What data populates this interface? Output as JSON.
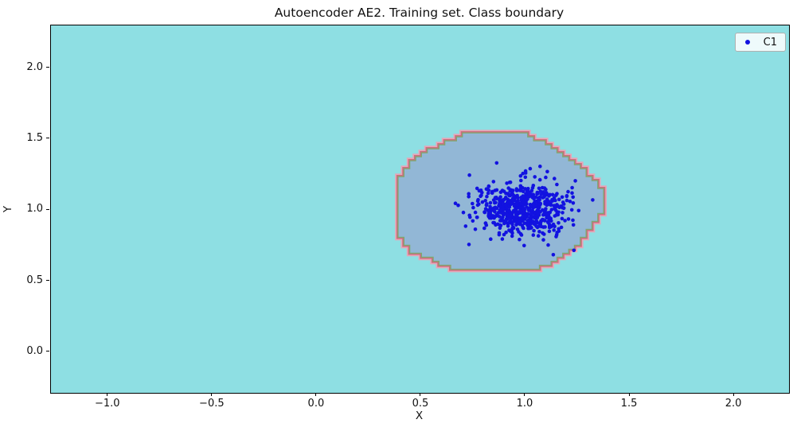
{
  "figure": {
    "title": "Autoencoder AE2. Training set. Class boundary",
    "xlabel": "X",
    "ylabel": "Y"
  },
  "axes": {
    "xlim": [
      -1.274,
      2.263
    ],
    "ylim": [
      -0.286,
      2.3
    ],
    "xticks": [
      -1.0,
      -0.5,
      0.0,
      0.5,
      1.0,
      1.5,
      2.0
    ],
    "xtick_labels": [
      "−1.0",
      "−0.5",
      "0.0",
      "0.5",
      "1.0",
      "1.5",
      "2.0"
    ],
    "yticks": [
      0.0,
      0.5,
      1.0,
      1.5,
      2.0
    ],
    "ytick_labels": [
      "0.0",
      "0.5",
      "1.0",
      "1.5",
      "2.0"
    ],
    "plot_bg": "#8edfe3",
    "frame_color": "#000000"
  },
  "legend": {
    "position": "upper right",
    "entries": [
      {
        "label": "C1",
        "marker": "dot",
        "marker_color": "#1212e0"
      }
    ]
  },
  "chart_data": {
    "type": "scatter",
    "title": "Autoencoder AE2. Training set. Class boundary",
    "xlabel": "X",
    "ylabel": "Y",
    "xlim": [
      -1.274,
      2.263
    ],
    "ylim": [
      -0.286,
      2.3
    ],
    "grid": false,
    "legend_position": "upper right",
    "outside_region_color": "#8edfe3",
    "series": [
      {
        "name": "C1",
        "marker": "dot",
        "color": "#1212e0",
        "n_points": 640,
        "cluster": {
          "center": [
            0.985,
            1.0
          ],
          "std": [
            0.103,
            0.09
          ],
          "seed": 12
        },
        "outliers": [
          [
            1.232,
            0.717
          ],
          [
            1.322,
            1.072
          ],
          [
            0.728,
            1.115
          ],
          [
            0.862,
            1.332
          ]
        ]
      }
    ],
    "class_boundary": {
      "description": "staircase contour region around class C1",
      "interior_fill": "#92b7d6",
      "outline_colors": {
        "outer_pink": "#e6a6b8",
        "mid_red": "#c96f7e",
        "inner_green": "#7da86f"
      },
      "contour_grid_step": 0.028,
      "polygon": [
        [
          0.382,
          0.863
        ],
        [
          0.382,
          1.199
        ],
        [
          0.43,
          1.3
        ],
        [
          0.53,
          1.42
        ],
        [
          0.717,
          1.535
        ],
        [
          0.984,
          1.535
        ],
        [
          1.12,
          1.445
        ],
        [
          1.27,
          1.285
        ],
        [
          1.359,
          1.143
        ],
        [
          1.359,
          0.98
        ],
        [
          1.3,
          0.855
        ],
        [
          1.235,
          0.735
        ],
        [
          1.1,
          0.615
        ],
        [
          0.984,
          0.575
        ],
        [
          0.679,
          0.575
        ],
        [
          0.46,
          0.72
        ]
      ]
    }
  }
}
